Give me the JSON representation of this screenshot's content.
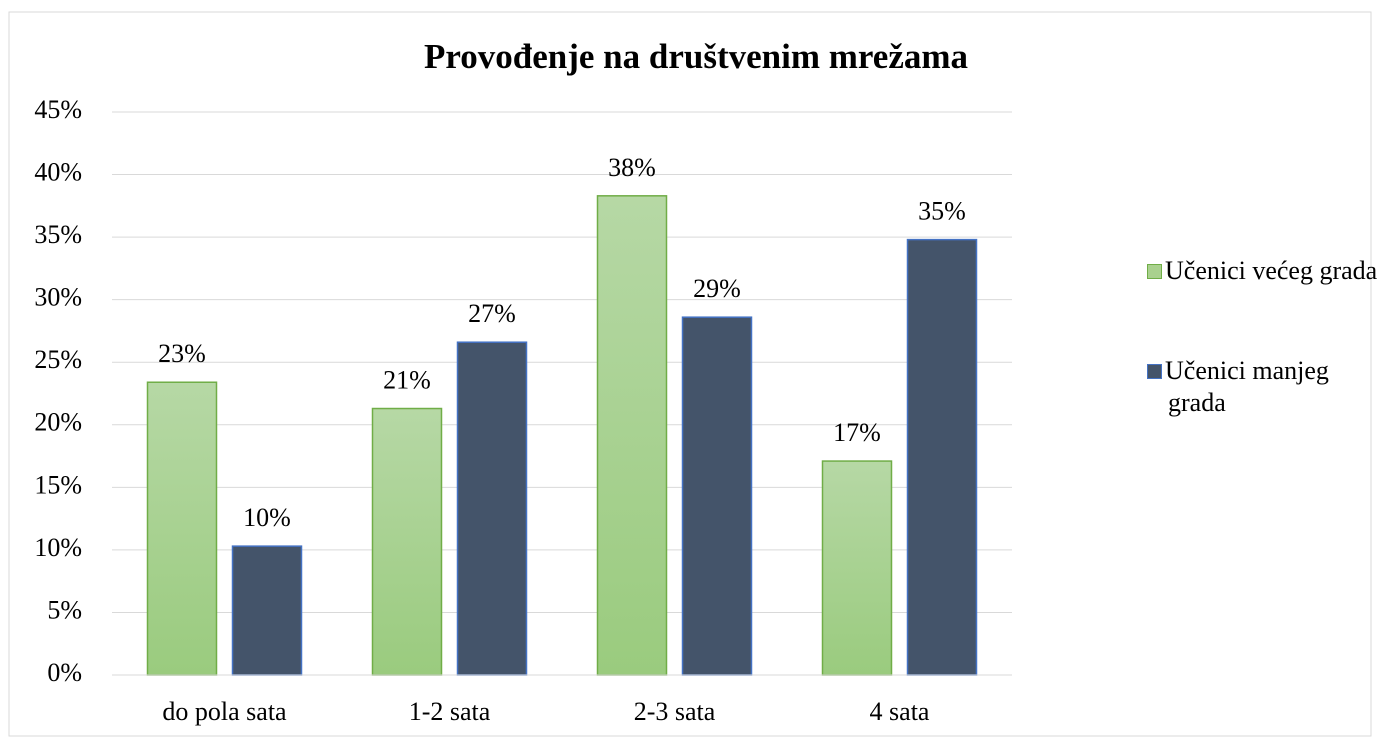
{
  "chart_data": {
    "type": "bar",
    "title": "Provođenje na društvenim mrežama",
    "categories": [
      "do pola sata",
      "1-2 sata",
      "2-3 sata",
      "4 sata"
    ],
    "series": [
      {
        "name": "Učenici većeg grada",
        "color": "#a9d18e",
        "values": [
          23.4,
          21.3,
          38.3,
          17.1
        ],
        "value_labels": [
          "23%",
          "21%",
          "38%",
          "17%"
        ]
      },
      {
        "name": "Učenici manjeg grada",
        "color": "#44546a",
        "values": [
          10.3,
          26.6,
          28.6,
          34.8
        ],
        "value_labels": [
          "10%",
          "27%",
          "29%",
          "35%"
        ]
      }
    ],
    "ylim": [
      0,
      45
    ],
    "yticks": [
      {
        "value": 0,
        "label": "0%"
      },
      {
        "value": 5,
        "label": "5%"
      },
      {
        "value": 10,
        "label": "10%"
      },
      {
        "value": 15,
        "label": "15%"
      },
      {
        "value": 20,
        "label": "20%"
      },
      {
        "value": 25,
        "label": "25%"
      },
      {
        "value": 30,
        "label": "30%"
      },
      {
        "value": 35,
        "label": "35%"
      },
      {
        "value": 40,
        "label": "40%"
      },
      {
        "value": 45,
        "label": "45%"
      }
    ],
    "grid": true,
    "legend": "right"
  }
}
